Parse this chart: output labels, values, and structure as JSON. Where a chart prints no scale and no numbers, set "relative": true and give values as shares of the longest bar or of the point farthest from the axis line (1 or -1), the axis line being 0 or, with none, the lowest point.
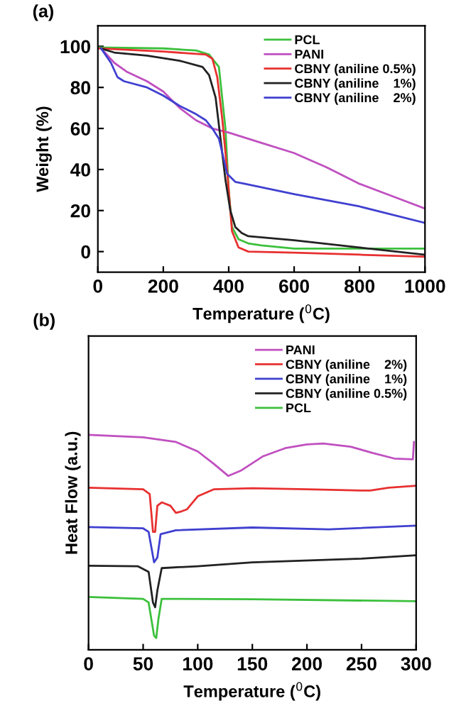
{
  "chart_data": [
    {
      "type": "line",
      "title": "(a)",
      "xlabel": "Temperature ($^{0}$C)",
      "ylabel": "Weight (%)",
      "xlim": [
        0,
        1000
      ],
      "xticks": [
        0,
        200,
        400,
        600,
        800,
        1000
      ],
      "ylim": [
        -10,
        110
      ],
      "yticks": [
        0,
        20,
        40,
        60,
        80,
        100
      ],
      "legend": "top right",
      "grid": false,
      "series": [
        {
          "name": "PCL",
          "color": "#3cc03c",
          "x": [
            0,
            200,
            300,
            340,
            370,
            390,
            400,
            410,
            430,
            460,
            500,
            600,
            800,
            1000
          ],
          "values": [
            99.5,
            99,
            98,
            96,
            90,
            60,
            30,
            12,
            6,
            4,
            3,
            1.5,
            1.5,
            1.5
          ]
        },
        {
          "name": "PANI",
          "color": "#c050c0",
          "x": [
            10,
            50,
            90,
            150,
            200,
            250,
            300,
            350,
            400,
            500,
            600,
            700,
            800,
            900,
            1000
          ],
          "values": [
            99,
            92,
            87.5,
            83,
            78,
            70,
            64,
            60,
            58,
            53,
            48,
            41,
            33,
            27,
            21
          ]
        },
        {
          "name": "CBNY (aniline 0.5%)",
          "color": "#e83030",
          "x": [
            0,
            200,
            330,
            350,
            365,
            380,
            395,
            410,
            430,
            460,
            600,
            800,
            1000
          ],
          "values": [
            99,
            97.5,
            96,
            94,
            85,
            65,
            40,
            10,
            2,
            0,
            -0.5,
            -1.5,
            -2.5
          ]
        },
        {
          "name": "CBNY (aniline    1%)",
          "color": "#222222",
          "x": [
            10,
            50,
            150,
            250,
            320,
            340,
            360,
            375,
            390,
            405,
            420,
            440,
            460,
            600,
            800,
            1000
          ],
          "values": [
            99,
            97,
            95.5,
            93,
            90,
            86,
            75,
            55,
            35,
            20,
            12,
            9,
            7.5,
            5.5,
            2,
            -1.5
          ]
        },
        {
          "name": "CBNY (aniline    2%)",
          "color": "#4040d0",
          "x": [
            10,
            40,
            60,
            80,
            150,
            200,
            250,
            300,
            330,
            350,
            370,
            385,
            395,
            420,
            450,
            600,
            800,
            1000
          ],
          "values": [
            99,
            92,
            85,
            83,
            80,
            76,
            71,
            67,
            64,
            60,
            55,
            45,
            38,
            34,
            33,
            28,
            22,
            14
          ]
        }
      ]
    },
    {
      "type": "line",
      "title": "(b)",
      "xlabel": "Temperature ($^{0}$C)",
      "ylabel": "Heat Flow (a.u.)",
      "relative": true,
      "xlim": [
        0,
        300
      ],
      "xticks": [
        0,
        50,
        100,
        150,
        200,
        250,
        300
      ],
      "tick_labels": "x",
      "legend": "top right",
      "grid": false,
      "series": [
        {
          "name": "PANI",
          "color": "#c050c0",
          "x": [
            0,
            50,
            80,
            100,
            115,
            128,
            140,
            160,
            180,
            200,
            215,
            240,
            260,
            280,
            297,
            298
          ],
          "values": [
            1.0,
            0.989,
            0.967,
            0.923,
            0.864,
            0.809,
            0.835,
            0.901,
            0.938,
            0.956,
            0.96,
            0.945,
            0.916,
            0.89,
            0.886,
            0.967
          ]
        },
        {
          "name": "CBNY (aniline    2%)",
          "color": "#e83030",
          "x": [
            0,
            50,
            56,
            59,
            61,
            63,
            67,
            75,
            80,
            85,
            90,
            100,
            115,
            150,
            200,
            250,
            258,
            275,
            300
          ],
          "values": [
            0.754,
            0.747,
            0.725,
            0.549,
            0.549,
            0.67,
            0.686,
            0.67,
            0.637,
            0.644,
            0.653,
            0.714,
            0.747,
            0.752,
            0.747,
            0.741,
            0.741,
            0.754,
            0.763
          ]
        },
        {
          "name": "CBNY (aniline    1%)",
          "color": "#4040d0",
          "x": [
            0,
            50,
            55,
            60,
            63,
            66,
            80,
            150,
            220,
            300
          ],
          "values": [
            0.571,
            0.565,
            0.549,
            0.407,
            0.429,
            0.538,
            0.556,
            0.569,
            0.56,
            0.578
          ]
        },
        {
          "name": "CBNY (aniline 0.5%)",
          "color": "#222222",
          "x": [
            0,
            45,
            55,
            59,
            61,
            63,
            67,
            100,
            150,
            250,
            300
          ],
          "values": [
            0.391,
            0.389,
            0.363,
            0.22,
            0.198,
            0.275,
            0.38,
            0.389,
            0.407,
            0.424,
            0.44
          ]
        },
        {
          "name": "PCL",
          "color": "#3cc03c",
          "x": [
            0,
            50,
            55,
            60,
            62,
            64,
            67,
            150,
            300
          ],
          "values": [
            0.246,
            0.237,
            0.22,
            0.066,
            0.055,
            0.143,
            0.237,
            0.235,
            0.226
          ]
        }
      ]
    }
  ]
}
